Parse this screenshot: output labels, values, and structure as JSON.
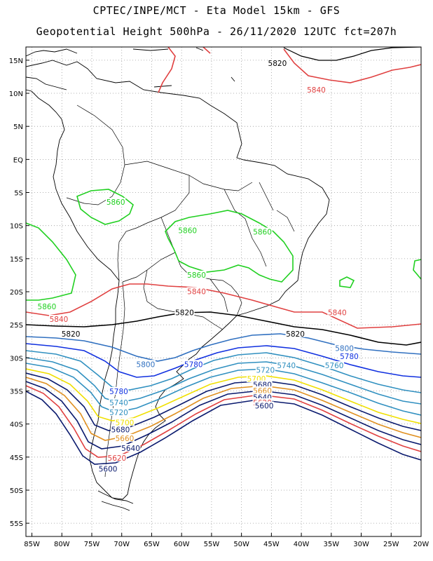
{
  "title": {
    "line1": "CPTEC/INPE/MCT -  Eta Model 15km - GFS",
    "line2": "Geopotential Height 500hPa - 26/11/2020 12UTC fct=207h"
  },
  "axes": {
    "lat_labels": [
      "15N",
      "10N",
      "5N",
      "EQ",
      "5S",
      "10S",
      "15S",
      "20S",
      "25S",
      "30S",
      "35S",
      "40S",
      "45S",
      "50S",
      "55S"
    ],
    "lon_labels": [
      "85W",
      "80W",
      "75W",
      "70W",
      "65W",
      "60W",
      "55W",
      "50W",
      "45W",
      "40W",
      "35W",
      "30W",
      "25W",
      "20W"
    ],
    "lat_range": [
      17,
      -57
    ],
    "lon_range": [
      -86,
      -20
    ],
    "grid": "dotted"
  },
  "contour_colors": {
    "5600": "#0a1a6e",
    "5620": "#e04040",
    "5640": "#0a1a6e",
    "5660": "#e09020",
    "5680": "#0a1a6e",
    "5700": "#f0e000",
    "5720": "#3090c0",
    "5740": "#3090c0",
    "5760": "#3090c0",
    "5780": "#1030e0",
    "5800": "#3070c0",
    "5820": "#000000",
    "5840": "#e04040",
    "5860": "#20d020"
  },
  "contour_labels": [
    {
      "value": "5820",
      "lon": -44,
      "lat": 14.5
    },
    {
      "value": "5840",
      "lon": -37.5,
      "lat": 10.5
    },
    {
      "value": "5860",
      "lon": -71,
      "lat": -6.5
    },
    {
      "value": "5860",
      "lon": -59,
      "lat": -10.8
    },
    {
      "value": "5860",
      "lon": -46.5,
      "lat": -11
    },
    {
      "value": "5860",
      "lon": -57.5,
      "lat": -17.5
    },
    {
      "value": "5860",
      "lon": -82.5,
      "lat": -22.3
    },
    {
      "value": "5840",
      "lon": -57.5,
      "lat": -20
    },
    {
      "value": "5840",
      "lon": -80.5,
      "lat": -24.2
    },
    {
      "value": "5840",
      "lon": -34,
      "lat": -23.2
    },
    {
      "value": "5820",
      "lon": -59.5,
      "lat": -23.2
    },
    {
      "value": "5820",
      "lon": -78.5,
      "lat": -26.4
    },
    {
      "value": "5820",
      "lon": -41,
      "lat": -26.4
    },
    {
      "value": "5800",
      "lon": -66,
      "lat": -31
    },
    {
      "value": "5780",
      "lon": -58,
      "lat": -31
    },
    {
      "value": "5800",
      "lon": -32.8,
      "lat": -28.6
    },
    {
      "value": "5780",
      "lon": -32,
      "lat": -29.8
    },
    {
      "value": "5760",
      "lon": -34.5,
      "lat": -31.2
    },
    {
      "value": "5740",
      "lon": -42.5,
      "lat": -31.2
    },
    {
      "value": "5720",
      "lon": -46,
      "lat": -31.9
    },
    {
      "value": "5700",
      "lon": -47.5,
      "lat": -33.2
    },
    {
      "value": "5680",
      "lon": -46.5,
      "lat": -34.1
    },
    {
      "value": "5660",
      "lon": -46.5,
      "lat": -35
    },
    {
      "value": "5640",
      "lon": -46.5,
      "lat": -36
    },
    {
      "value": "5620",
      "lon": -46.5,
      "lat": -36.8
    },
    {
      "value": "5600",
      "lon": -46.2,
      "lat": -37.3
    },
    {
      "value": "5780",
      "lon": -70.5,
      "lat": -35.1
    },
    {
      "value": "5740",
      "lon": -70.5,
      "lat": -36.8
    },
    {
      "value": "5720",
      "lon": -70.5,
      "lat": -38.3
    },
    {
      "value": "5700",
      "lon": -69.5,
      "lat": -39.8
    },
    {
      "value": "5680",
      "lon": -70.2,
      "lat": -40.9
    },
    {
      "value": "5660",
      "lon": -69.5,
      "lat": -42.2
    },
    {
      "value": "5640",
      "lon": -68.5,
      "lat": -43.7
    },
    {
      "value": "5620",
      "lon": -70.8,
      "lat": -45.2
    },
    {
      "value": "5600",
      "lon": -72.3,
      "lat": -46.8
    }
  ]
}
